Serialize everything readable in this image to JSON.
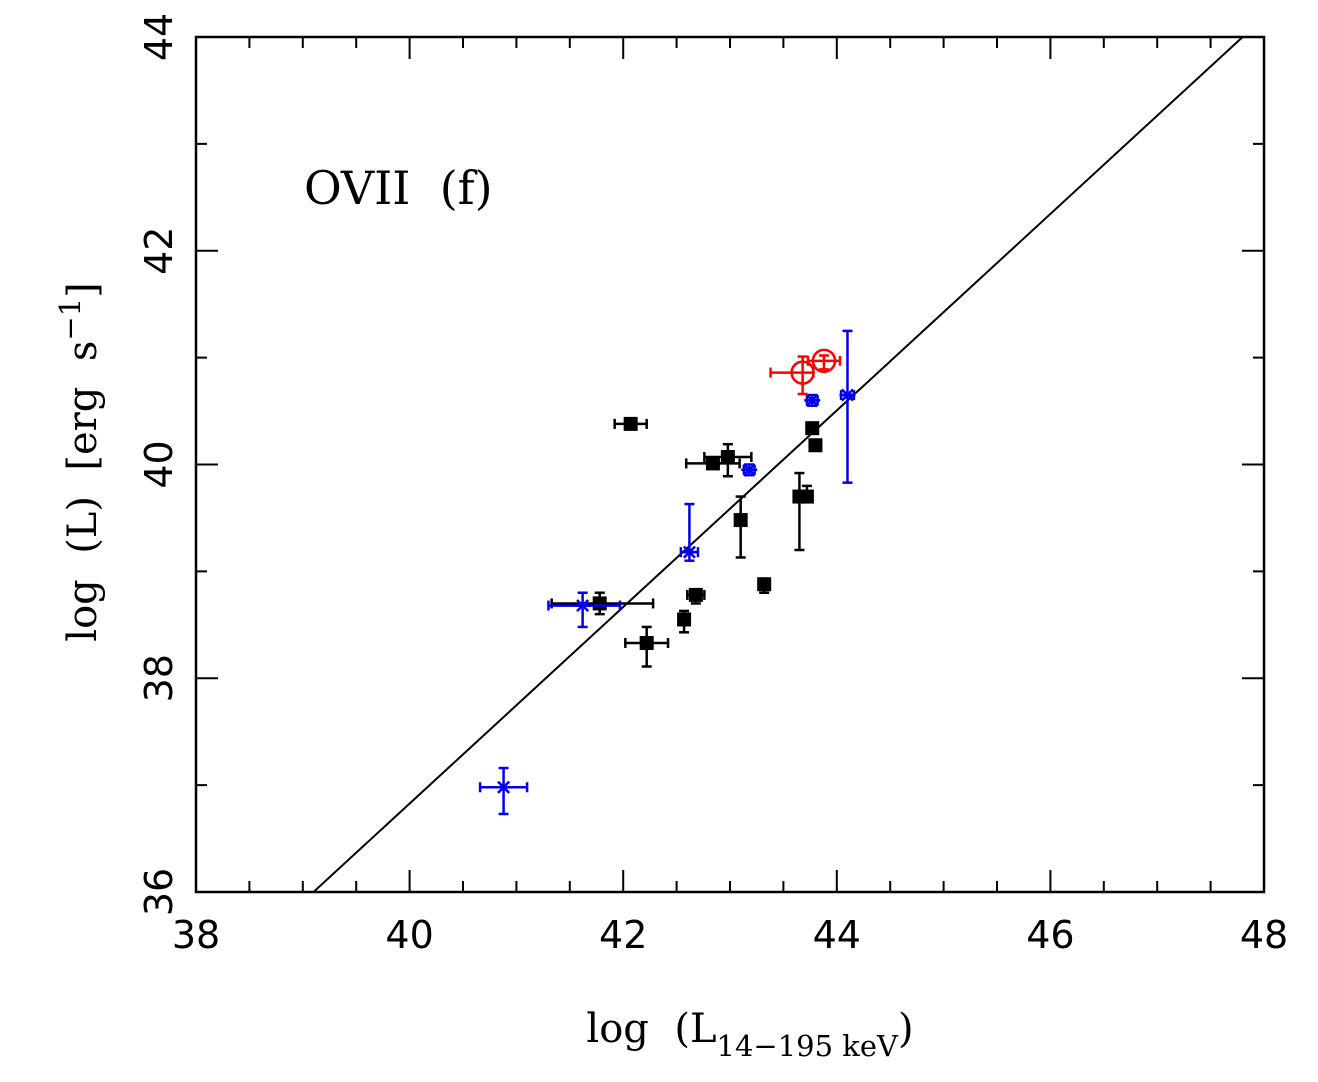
{
  "chart_data": {
    "type": "scatter",
    "annotation": "OVII  (f)",
    "xlabel": {
      "prefix": "log  (L",
      "sub": "14−195 keV",
      "suffix": ")"
    },
    "ylabel": {
      "prefix": "log  (L)  [erg  s",
      "sup": "−1",
      "suffix": "]"
    },
    "xlim": [
      38,
      48
    ],
    "ylim": [
      36,
      44
    ],
    "xticks": [
      "38",
      "40",
      "42",
      "44",
      "46",
      "48"
    ],
    "yticks": [
      "36",
      "38",
      "40",
      "42",
      "44"
    ],
    "fit_line": {
      "x": [
        39.1,
        47.8
      ],
      "y": [
        36.0,
        44.0
      ]
    },
    "series": [
      {
        "name": "squares",
        "marker": "square",
        "color": "#000000",
        "points": [
          {
            "x": 41.78,
            "y": 38.7,
            "xerr": [
              0.45,
              0.5
            ],
            "yerr": [
              0.1,
              0.1
            ]
          },
          {
            "x": 42.07,
            "y": 40.38,
            "xerr": [
              0.15,
              0.15
            ],
            "yerr": [
              0,
              0
            ]
          },
          {
            "x": 42.22,
            "y": 38.33,
            "xerr": [
              0.2,
              0.2
            ],
            "yerr": [
              0.22,
              0.15
            ]
          },
          {
            "x": 42.57,
            "y": 38.55,
            "xerr": [
              0.05,
              0.05
            ],
            "yerr": [
              0.12,
              0.08
            ]
          },
          {
            "x": 42.68,
            "y": 38.78,
            "xerr": [
              0.08,
              0.08
            ],
            "yerr": [
              0.08,
              0.05
            ]
          },
          {
            "x": 42.84,
            "y": 40.01,
            "xerr": [
              0.25,
              0.25
            ],
            "yerr": [
              0.05,
              0.05
            ]
          },
          {
            "x": 42.98,
            "y": 40.07,
            "xerr": [
              0.22,
              0.22
            ],
            "yerr": [
              0.18,
              0.12
            ]
          },
          {
            "x": 43.1,
            "y": 39.48,
            "xerr": [
              0.05,
              0.05
            ],
            "yerr": [
              0.35,
              0.22
            ]
          },
          {
            "x": 43.32,
            "y": 38.88,
            "xerr": [
              0.05,
              0.05
            ],
            "yerr": [
              0.08,
              0.05
            ]
          },
          {
            "x": 43.65,
            "y": 39.7,
            "xerr": [
              0.05,
              0.05
            ],
            "yerr": [
              0.5,
              0.22
            ]
          },
          {
            "x": 43.72,
            "y": 39.7,
            "xerr": [
              0.05,
              0.05
            ],
            "yerr": [
              0.05,
              0.1
            ]
          },
          {
            "x": 43.77,
            "y": 40.34,
            "xerr": [
              0,
              0
            ],
            "yerr": [
              0,
              0
            ]
          },
          {
            "x": 43.8,
            "y": 40.18,
            "xerr": [
              0,
              0
            ],
            "yerr": [
              0,
              0
            ]
          }
        ]
      },
      {
        "name": "crosses",
        "marker": "asterisk",
        "color": "#0000ee",
        "points": [
          {
            "x": 40.88,
            "y": 36.98,
            "xerr": [
              0.22,
              0.22
            ],
            "yerr": [
              0.25,
              0.18
            ]
          },
          {
            "x": 41.62,
            "y": 38.68,
            "xerr": [
              0.32,
              0.35
            ],
            "yerr": [
              0.2,
              0.12
            ]
          },
          {
            "x": 42.62,
            "y": 39.18,
            "xerr": [
              0.08,
              0.08
            ],
            "yerr": [
              0.08,
              0.45
            ]
          },
          {
            "x": 43.18,
            "y": 39.95,
            "xerr": [
              0.05,
              0.05
            ],
            "yerr": [
              0.05,
              0.05
            ]
          },
          {
            "x": 43.77,
            "y": 40.6,
            "xerr": [
              0.05,
              0.05
            ],
            "yerr": [
              0.05,
              0.05
            ]
          },
          {
            "x": 44.1,
            "y": 40.65,
            "xerr": [
              0.06,
              0.06
            ],
            "yerr": [
              0.82,
              0.6
            ]
          }
        ]
      },
      {
        "name": "circles",
        "marker": "circle",
        "color": "#ff0000",
        "points": [
          {
            "x": 43.68,
            "y": 40.86,
            "xerr": [
              0.3,
              0.1
            ],
            "yerr": [
              0.2,
              0.15
            ]
          },
          {
            "x": 43.88,
            "y": 40.97,
            "xerr": [
              0.15,
              0.15
            ],
            "yerr": [
              0.08,
              0.05
            ]
          }
        ]
      }
    ]
  }
}
